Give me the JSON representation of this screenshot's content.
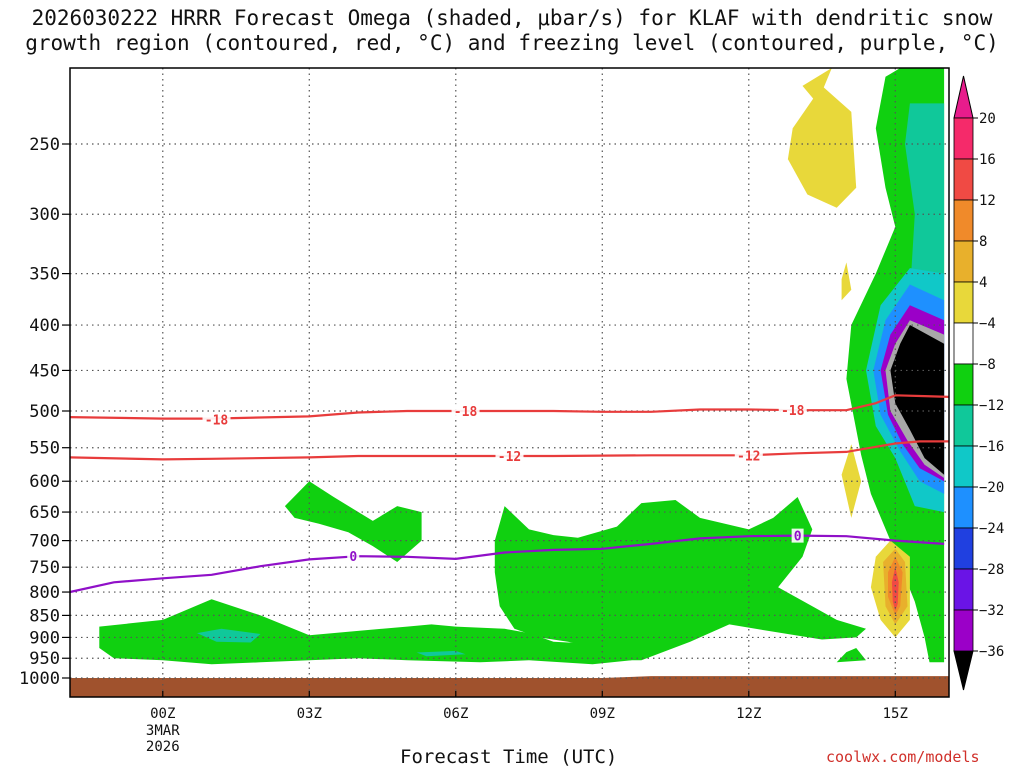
{
  "title_line1": "2026030222 HRRR Forecast Omega (shaded, μbar/s) for KLAF with dendritic snow",
  "title_line2": "growth region (contoured, red, °C) and freezing level (contoured, purple, °C)",
  "credit": "coolwx.com/models",
  "chart_data": {
    "type": "heatmap",
    "xlabel": "Forecast Time (UTC)",
    "ylabel": "",
    "x_unit": "forecast hour from 00Z 3 Mar 2026",
    "xlim": [
      -1.9,
      16.1
    ],
    "x_ticks": [
      {
        "x": 0,
        "label": "00Z",
        "sub": [
          "3MAR",
          "2026"
        ]
      },
      {
        "x": 3,
        "label": "03Z"
      },
      {
        "x": 6,
        "label": "06Z"
      },
      {
        "x": 9,
        "label": "09Z"
      },
      {
        "x": 12,
        "label": "12Z"
      },
      {
        "x": 15,
        "label": "15Z"
      }
    ],
    "y_scale": "log-pressure",
    "ylim": [
      1050,
      200
    ],
    "y_ticks": [
      250,
      300,
      350,
      400,
      450,
      500,
      550,
      600,
      650,
      700,
      750,
      800,
      850,
      900,
      950,
      1000
    ],
    "grid": true,
    "colorbar": {
      "levels": [
        -36,
        -32,
        -28,
        -24,
        -20,
        -16,
        -12,
        -8,
        -4,
        4,
        8,
        12,
        16,
        20
      ],
      "colors": [
        "#000000",
        "#a8a8a8",
        "#9b00c8",
        "#6a14e6",
        "#2040e0",
        "#1e90ff",
        "#10c8c8",
        "#10c89a",
        "#10d010",
        "#ffffff",
        "#e8d83a",
        "#e8b02c",
        "#f08a2a",
        "#f04a44",
        "#f52a6a",
        "#e81c8c"
      ],
      "labels": [
        "20",
        "16",
        "12",
        "8",
        "4",
        "−4",
        "−8",
        "−12",
        "−16",
        "−20",
        "−24",
        "−28",
        "−32",
        "−36"
      ]
    },
    "contours": [
      {
        "name": "-18",
        "color": "#e83c3c",
        "points": [
          [
            -1.9,
            508
          ],
          [
            0,
            510
          ],
          [
            1,
            510
          ],
          [
            3,
            507
          ],
          [
            4,
            502
          ],
          [
            5,
            500
          ],
          [
            6,
            500
          ],
          [
            8,
            500
          ],
          [
            9,
            501
          ],
          [
            10,
            501
          ],
          [
            11,
            498
          ],
          [
            12,
            498
          ],
          [
            13,
            499
          ],
          [
            14,
            499
          ],
          [
            14.6,
            490
          ],
          [
            15,
            480
          ],
          [
            15.6,
            481
          ],
          [
            16.1,
            482
          ]
        ]
      },
      {
        "name": "-12",
        "color": "#e83c3c",
        "points": [
          [
            -1.9,
            564
          ],
          [
            0,
            567
          ],
          [
            1,
            566
          ],
          [
            3,
            564
          ],
          [
            4,
            562
          ],
          [
            6,
            562
          ],
          [
            8,
            562
          ],
          [
            10,
            561
          ],
          [
            12,
            561
          ],
          [
            13,
            558
          ],
          [
            14,
            556
          ],
          [
            14.5,
            550
          ],
          [
            15,
            544
          ],
          [
            15.5,
            541
          ],
          [
            16.1,
            541
          ]
        ]
      },
      {
        "name": "0",
        "color": "#9010c8",
        "points": [
          [
            -1.9,
            800
          ],
          [
            -1,
            780
          ],
          [
            0,
            772
          ],
          [
            1,
            765
          ],
          [
            2,
            748
          ],
          [
            3,
            735
          ],
          [
            4,
            729
          ],
          [
            5,
            730
          ],
          [
            6,
            734
          ],
          [
            7,
            722
          ],
          [
            8,
            717
          ],
          [
            9,
            715
          ],
          [
            10,
            706
          ],
          [
            11,
            696
          ],
          [
            12,
            692
          ],
          [
            13,
            691
          ],
          [
            14,
            692
          ],
          [
            15,
            700
          ],
          [
            16,
            706
          ]
        ]
      }
    ],
    "contour_labels": [
      {
        "text": "-18",
        "x": 1.1,
        "y": 511
      },
      {
        "text": "-18",
        "x": 6.2,
        "y": 500
      },
      {
        "text": "-18",
        "x": 12.9,
        "y": 499
      },
      {
        "text": "-12",
        "x": 7.1,
        "y": 562
      },
      {
        "text": "-12",
        "x": 12.0,
        "y": 561
      },
      {
        "text": "0",
        "x": 3.9,
        "y": 729
      },
      {
        "text": "0",
        "x": 13.0,
        "y": 691
      }
    ],
    "shaded_regions": [
      {
        "color": "#10d010",
        "points": [
          [
            -1.3,
            875
          ],
          [
            0,
            860
          ],
          [
            1,
            815
          ],
          [
            2,
            850
          ],
          [
            3,
            895
          ],
          [
            4,
            885
          ],
          [
            5,
            875
          ],
          [
            5.5,
            870
          ],
          [
            6,
            875
          ],
          [
            7,
            880
          ],
          [
            7.5,
            890
          ],
          [
            8,
            910
          ],
          [
            8.8,
            915
          ],
          [
            9,
            910
          ],
          [
            9.6,
            955
          ],
          [
            8.8,
            965
          ],
          [
            7.5,
            955
          ],
          [
            6.5,
            960
          ],
          [
            5,
            955
          ],
          [
            4,
            950
          ],
          [
            3,
            955
          ],
          [
            2,
            960
          ],
          [
            1,
            965
          ],
          [
            0,
            955
          ],
          [
            -1,
            950
          ],
          [
            -1.3,
            925
          ]
        ]
      },
      {
        "color": "#10d010",
        "points": [
          [
            2.5,
            640
          ],
          [
            3,
            600
          ],
          [
            3.5,
            625
          ],
          [
            4.3,
            665
          ],
          [
            4.8,
            640
          ],
          [
            5.3,
            650
          ],
          [
            5.3,
            700
          ],
          [
            4.8,
            740
          ],
          [
            4.3,
            710
          ],
          [
            3.8,
            685
          ],
          [
            3.2,
            670
          ],
          [
            2.7,
            660
          ]
        ]
      },
      {
        "color": "#10d010",
        "points": [
          [
            6.8,
            700
          ],
          [
            7,
            640
          ],
          [
            7.5,
            680
          ],
          [
            8,
            690
          ],
          [
            8.5,
            695
          ],
          [
            9.3,
            675
          ],
          [
            9.8,
            635
          ],
          [
            10.5,
            630
          ],
          [
            11,
            660
          ],
          [
            12,
            680
          ],
          [
            12.5,
            660
          ],
          [
            13,
            625
          ],
          [
            13.3,
            680
          ],
          [
            13.1,
            730
          ],
          [
            12.6,
            790
          ],
          [
            13.3,
            830
          ],
          [
            13.8,
            860
          ],
          [
            14.4,
            880
          ],
          [
            14.2,
            900
          ],
          [
            13.5,
            905
          ],
          [
            12.4,
            885
          ],
          [
            11.6,
            870
          ],
          [
            10.8,
            910
          ],
          [
            9.8,
            955
          ],
          [
            9.3,
            955
          ],
          [
            8.8,
            925
          ],
          [
            8.3,
            910
          ],
          [
            7.7,
            900
          ],
          [
            7.2,
            880
          ],
          [
            6.9,
            830
          ],
          [
            6.8,
            760
          ]
        ]
      },
      {
        "color": "#10d010",
        "points": [
          [
            14.2,
            925
          ],
          [
            14.4,
            955
          ],
          [
            13.8,
            960
          ],
          [
            14,
            935
          ]
        ]
      },
      {
        "color": "#10d010",
        "points": [
          [
            15.1,
            200
          ],
          [
            16,
            200
          ],
          [
            16,
            960
          ],
          [
            15.7,
            960
          ],
          [
            15.6,
            900
          ],
          [
            15.4,
            820
          ],
          [
            14.9,
            700
          ],
          [
            14.5,
            620
          ],
          [
            14.3,
            560
          ],
          [
            14,
            460
          ],
          [
            14.1,
            400
          ],
          [
            14.6,
            350
          ],
          [
            15,
            310
          ],
          [
            14.8,
            280
          ],
          [
            14.6,
            240
          ],
          [
            14.8,
            210
          ]
        ]
      },
      {
        "color": "#10c89a",
        "points": [
          [
            15.3,
            225
          ],
          [
            16,
            225
          ],
          [
            16,
            400
          ],
          [
            15.3,
            370
          ],
          [
            15.4,
            300
          ],
          [
            15.2,
            250
          ]
        ]
      },
      {
        "color": "#10c8c8",
        "points": [
          [
            14.4,
            450
          ],
          [
            14.7,
            380
          ],
          [
            15.3,
            345
          ],
          [
            16,
            350
          ],
          [
            16,
            650
          ],
          [
            15.4,
            640
          ],
          [
            15,
            565
          ],
          [
            14.6,
            520
          ]
        ]
      },
      {
        "color": "#1e90ff",
        "points": [
          [
            14.55,
            450
          ],
          [
            14.8,
            395
          ],
          [
            15.3,
            360
          ],
          [
            16,
            375
          ],
          [
            16,
            620
          ],
          [
            15.5,
            600
          ],
          [
            15.1,
            555
          ],
          [
            14.7,
            505
          ]
        ]
      },
      {
        "color": "#9b00c8",
        "points": [
          [
            14.7,
            450
          ],
          [
            14.9,
            410
          ],
          [
            15.3,
            380
          ],
          [
            16,
            395
          ],
          [
            16,
            600
          ],
          [
            15.5,
            580
          ],
          [
            15.15,
            545
          ],
          [
            14.85,
            505
          ]
        ]
      },
      {
        "color": "#a8a8a8",
        "points": [
          [
            14.8,
            450
          ],
          [
            15,
            420
          ],
          [
            15.3,
            395
          ],
          [
            16,
            410
          ],
          [
            16,
            595
          ],
          [
            15.6,
            575
          ],
          [
            15.25,
            540
          ],
          [
            14.9,
            500
          ]
        ]
      },
      {
        "color": "#000000",
        "points": [
          [
            14.9,
            450
          ],
          [
            15.1,
            420
          ],
          [
            15.3,
            400
          ],
          [
            16,
            420
          ],
          [
            16,
            590
          ],
          [
            15.6,
            565
          ],
          [
            15.3,
            525
          ],
          [
            15,
            490
          ]
        ]
      },
      {
        "color": "#10c89a",
        "points": [
          [
            0.7,
            890
          ],
          [
            1.2,
            880
          ],
          [
            2,
            892
          ],
          [
            1.8,
            912
          ],
          [
            1.1,
            910
          ]
        ]
      },
      {
        "color": "#10c89a",
        "points": [
          [
            5.2,
            936
          ],
          [
            6,
            932
          ],
          [
            6.2,
            940
          ],
          [
            5.4,
            945
          ]
        ]
      },
      {
        "color": "#e8d83a",
        "points": [
          [
            12.9,
            240
          ],
          [
            13.5,
            215
          ],
          [
            14.1,
            230
          ],
          [
            14.2,
            280
          ],
          [
            13.8,
            295
          ],
          [
            13.2,
            285
          ],
          [
            12.8,
            260
          ]
        ]
      },
      {
        "color": "#e8d83a",
        "points": [
          [
            13.1,
            215
          ],
          [
            13.7,
            205
          ],
          [
            13.4,
            225
          ]
        ]
      },
      {
        "color": "#e8d83a",
        "points": [
          [
            13.9,
            355
          ],
          [
            14.0,
            340
          ],
          [
            14.1,
            365
          ],
          [
            13.9,
            375
          ]
        ]
      },
      {
        "color": "#e8d83a",
        "points": [
          [
            13.9,
            590
          ],
          [
            14.1,
            545
          ],
          [
            14.3,
            600
          ],
          [
            14.1,
            660
          ]
        ]
      },
      {
        "color": "#e8d83a",
        "points": [
          [
            14.6,
            730
          ],
          [
            14.9,
            700
          ],
          [
            15.3,
            730
          ],
          [
            15.3,
            860
          ],
          [
            15,
            900
          ],
          [
            14.7,
            860
          ],
          [
            14.5,
            790
          ]
        ]
      },
      {
        "color": "#e8b02c",
        "points": [
          [
            14.75,
            740
          ],
          [
            15.0,
            715
          ],
          [
            15.2,
            740
          ],
          [
            15.25,
            830
          ],
          [
            15.0,
            870
          ],
          [
            14.8,
            830
          ]
        ]
      },
      {
        "color": "#f08a2a",
        "points": [
          [
            14.85,
            760
          ],
          [
            15.0,
            730
          ],
          [
            15.15,
            760
          ],
          [
            15.1,
            830
          ],
          [
            15.0,
            850
          ],
          [
            14.85,
            810
          ]
        ]
      },
      {
        "color": "#f04a44",
        "points": [
          [
            14.93,
            780
          ],
          [
            15.0,
            750
          ],
          [
            15.07,
            780
          ],
          [
            15.05,
            825
          ],
          [
            15.0,
            840
          ],
          [
            14.95,
            820
          ]
        ]
      }
    ],
    "terrain": {
      "color": "#a0522d",
      "top_hpa": [
        [
          -1.9,
          1000
        ],
        [
          9,
          1000
        ],
        [
          10,
          995
        ],
        [
          16.1,
          995
        ]
      ]
    }
  }
}
